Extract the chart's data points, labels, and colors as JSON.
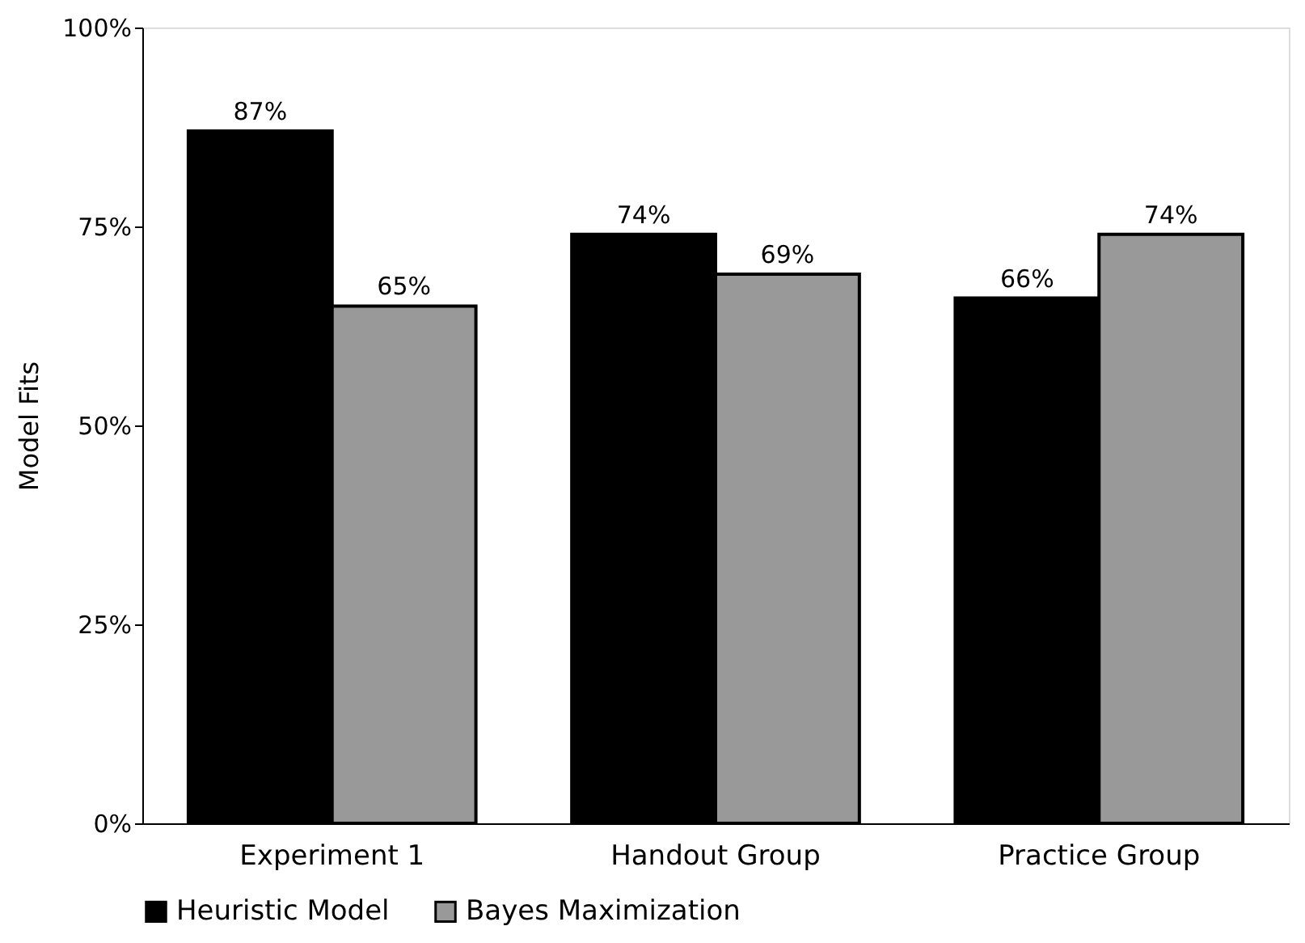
{
  "chart_data": {
    "type": "bar",
    "ylabel": "Model Fits",
    "categories": [
      "Experiment 1",
      "Handout Group",
      "Practice Group"
    ],
    "series": [
      {
        "name": "Heuristic Model",
        "color": "#000000",
        "values": [
          87,
          74,
          66
        ],
        "value_labels": [
          "87%",
          "74%",
          "66%"
        ]
      },
      {
        "name": "Bayes Maximization",
        "color": "#999999",
        "values": [
          65,
          69,
          74
        ],
        "value_labels": [
          "65%",
          "69%",
          "74%"
        ]
      }
    ],
    "ylim": [
      0,
      100
    ],
    "yticks": [
      {
        "value": 0,
        "label": "0%"
      },
      {
        "value": 25,
        "label": "25%"
      },
      {
        "value": 50,
        "label": "50%"
      },
      {
        "value": 75,
        "label": "75%"
      },
      {
        "value": 100,
        "label": "100%"
      }
    ],
    "grid": false,
    "legend": "bottom"
  }
}
